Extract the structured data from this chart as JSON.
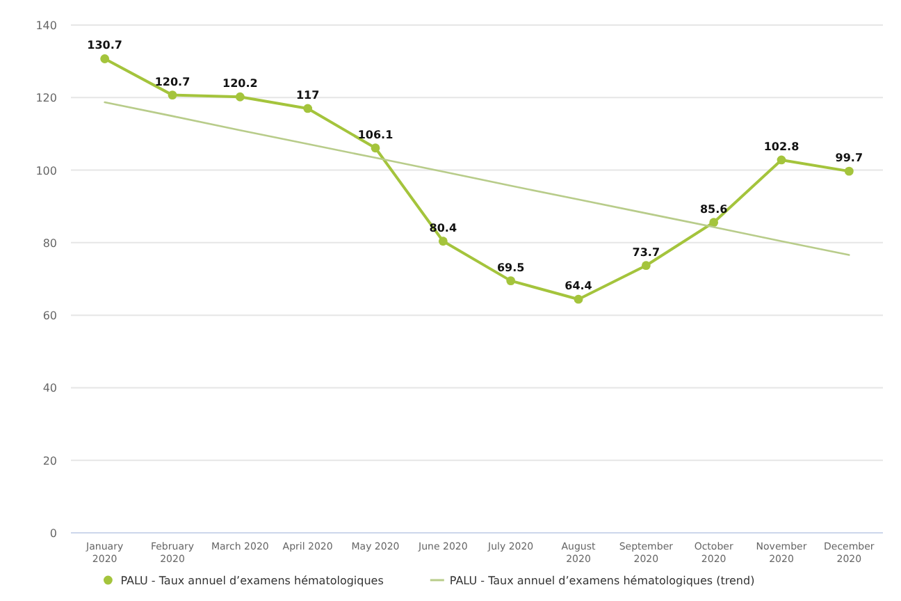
{
  "chart_data": {
    "type": "line",
    "categories": [
      "January 2020",
      "February 2020",
      "March 2020",
      "April 2020",
      "May 2020",
      "June 2020",
      "July 2020",
      "August 2020",
      "September 2020",
      "October 2020",
      "November 2020",
      "December 2020"
    ],
    "series": [
      {
        "name": "PALU - Taux annuel d’examens hématologiques",
        "color": "#a4c43c",
        "values": [
          130.7,
          120.7,
          120.2,
          117,
          106.1,
          80.4,
          69.5,
          64.4,
          73.7,
          85.6,
          102.8,
          99.7
        ],
        "marker": "circle",
        "data_labels": true
      },
      {
        "name": "PALU - Taux annuel d’examens hématologiques (trend)",
        "color": "#b8cc8a",
        "values": [
          118.7,
          114.9,
          111.0,
          107.2,
          103.4,
          99.6,
          95.7,
          91.9,
          88.1,
          84.3,
          80.4,
          76.6
        ],
        "marker": "none"
      }
    ],
    "ylim": [
      0,
      140
    ],
    "yticks": [
      0,
      20,
      40,
      60,
      80,
      100,
      120,
      140
    ],
    "grid": "y",
    "legend": "bottom"
  }
}
